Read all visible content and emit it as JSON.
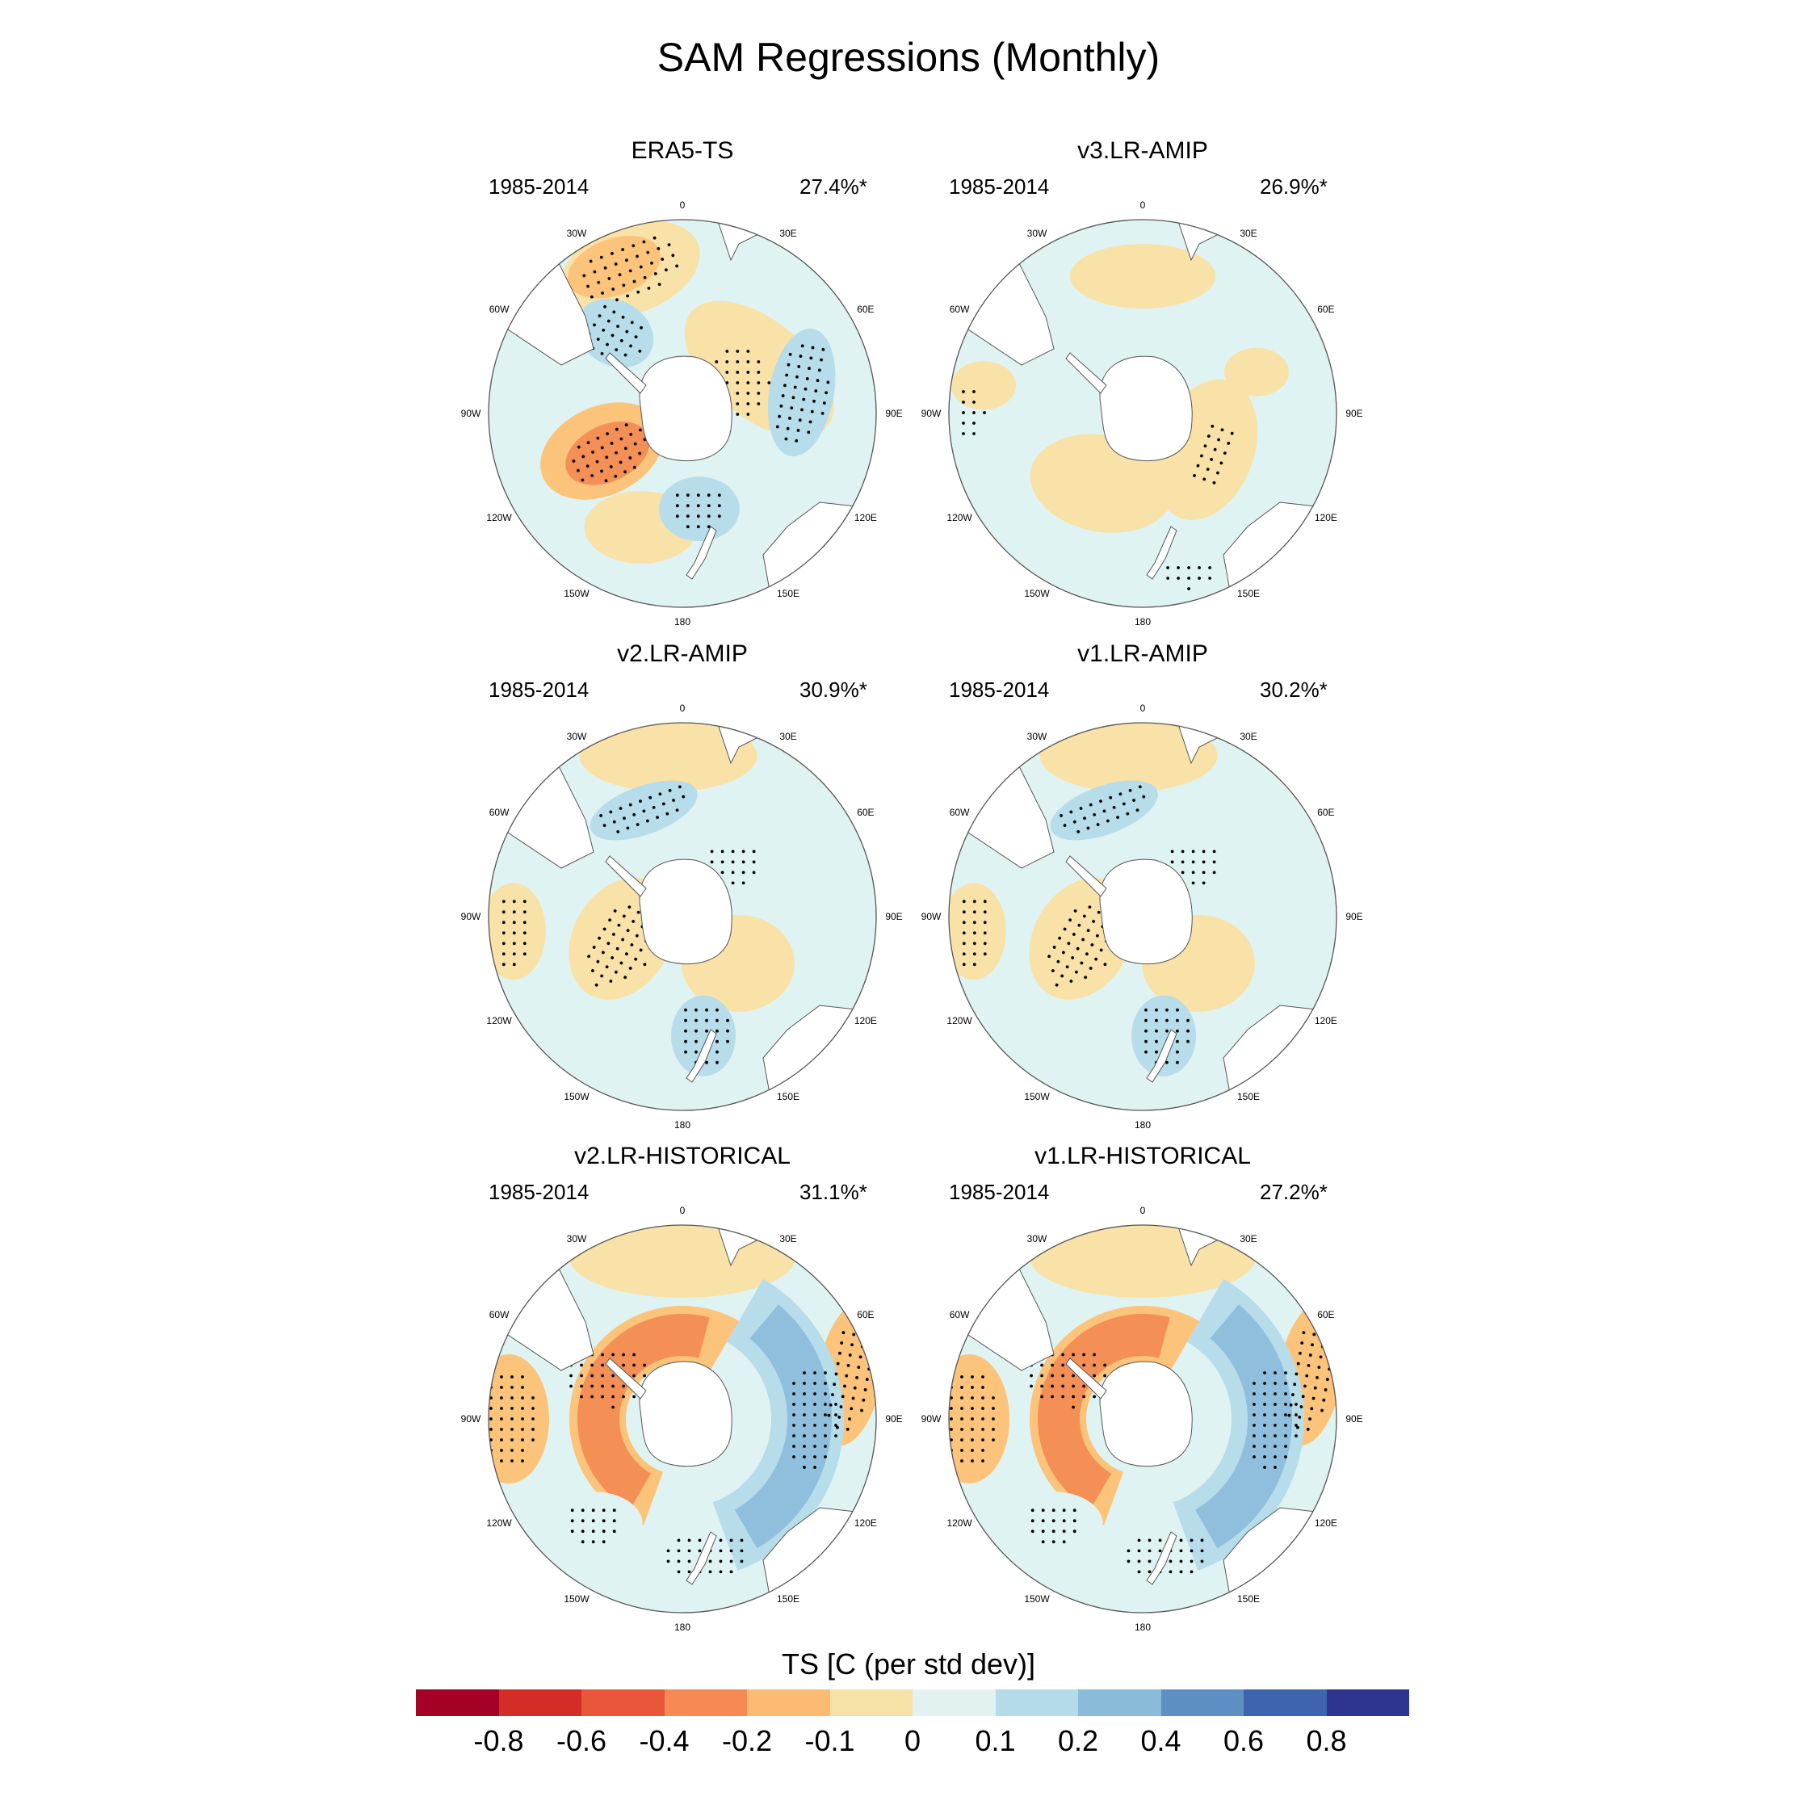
{
  "title": "SAM Regressions (Monthly)",
  "colors": {
    "land": "#ffffff",
    "dots": "#000000",
    "contour": "#555555",
    "pos_weak": "#e0f3f3",
    "pos_mid": "#b7dcea",
    "pos_strong": "#8fbfdc",
    "pos_vstrong": "#5f8fc4",
    "neg_weak": "#f8e2a8",
    "neg_mid": "#fbc47a",
    "neg_strong": "#f48f56",
    "neg_vstrong": "#e65f3c"
  },
  "longitude_labels": [
    "0",
    "30E",
    "60E",
    "90E",
    "120E",
    "150E",
    "180",
    "150W",
    "120W",
    "90W",
    "60W",
    "30W"
  ],
  "panels": [
    {
      "name": "ERA5-TS",
      "period": "1985-2014",
      "percent": "27.4%*",
      "pattern": "obs"
    },
    {
      "name": "v3.LR-AMIP",
      "period": "1985-2014",
      "percent": "26.9%*",
      "pattern": "weak"
    },
    {
      "name": "v2.LR-AMIP",
      "period": "1985-2014",
      "percent": "30.9%*",
      "pattern": "amip"
    },
    {
      "name": "v1.LR-AMIP",
      "period": "1985-2014",
      "percent": "30.2%*",
      "pattern": "amip"
    },
    {
      "name": "v2.LR-HISTORICAL",
      "period": "1985-2014",
      "percent": "31.1%*",
      "pattern": "hist"
    },
    {
      "name": "v1.LR-HISTORICAL",
      "period": "1985-2014",
      "percent": "27.2%*",
      "pattern": "hist"
    }
  ],
  "colorbar": {
    "title": "TS [C (per std dev)]",
    "colors": [
      "#a50026",
      "#d42c27",
      "#e8573a",
      "#f68a52",
      "#fbbb72",
      "#f6e2a6",
      "#e2f2f1",
      "#b5dbe9",
      "#8abcd9",
      "#5d8fc2",
      "#3e64ad",
      "#2e3591"
    ],
    "labels": [
      "-0.8",
      "-0.6",
      "-0.4",
      "-0.2",
      "-0.1",
      "0",
      "0.1",
      "0.2",
      "0.4",
      "0.6",
      "0.8"
    ]
  }
}
